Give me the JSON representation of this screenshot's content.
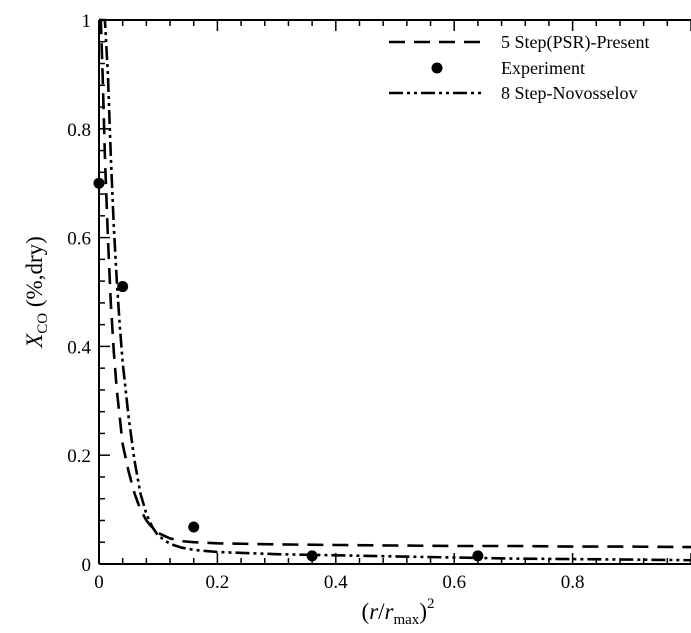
{
  "chart_data": {
    "type": "line",
    "title": "",
    "xlabel": "(r/r_max)^2",
    "ylabel": "X_CO (%,dry)",
    "xlim": [
      0,
      1.0
    ],
    "ylim": [
      0,
      1.0
    ],
    "xticks": [
      "0",
      "0.2",
      "0.4",
      "0.6",
      "0.8"
    ],
    "yticks": [
      "0",
      "0.2",
      "0.4",
      "0.6",
      "0.8",
      "1"
    ],
    "legend_placement": "top-right",
    "series": [
      {
        "name": "5 Step(PSR)-Present",
        "style": "dashed",
        "color": "#000000",
        "x": [
          0.0,
          0.003,
          0.006,
          0.01,
          0.015,
          0.02,
          0.025,
          0.03,
          0.035,
          0.04,
          0.05,
          0.06,
          0.07,
          0.08,
          0.09,
          0.1,
          0.12,
          0.14,
          0.16,
          0.2,
          0.3,
          0.4,
          0.5,
          0.6,
          0.7,
          0.8,
          0.9,
          1.0
        ],
        "y": [
          1.0,
          1.0,
          0.9,
          0.75,
          0.6,
          0.48,
          0.39,
          0.32,
          0.27,
          0.22,
          0.17,
          0.13,
          0.1,
          0.08,
          0.067,
          0.057,
          0.047,
          0.042,
          0.04,
          0.038,
          0.036,
          0.035,
          0.034,
          0.033,
          0.033,
          0.032,
          0.032,
          0.031
        ]
      },
      {
        "name": "Experiment",
        "style": "markers",
        "color": "#000000",
        "x": [
          0.0,
          0.04,
          0.16,
          0.36,
          0.64
        ],
        "y": [
          0.7,
          0.51,
          0.068,
          0.015,
          0.015
        ]
      },
      {
        "name": "8 Step-Novosselov",
        "style": "dash-dot-dot",
        "color": "#000000",
        "x": [
          0.0,
          0.005,
          0.01,
          0.015,
          0.02,
          0.025,
          0.03,
          0.035,
          0.04,
          0.05,
          0.06,
          0.07,
          0.08,
          0.09,
          0.1,
          0.12,
          0.14,
          0.16,
          0.2,
          0.3,
          0.4,
          0.5,
          0.6,
          0.7,
          0.8,
          0.9,
          1.0
        ],
        "y": [
          1.0,
          1.0,
          1.0,
          0.9,
          0.75,
          0.62,
          0.52,
          0.44,
          0.37,
          0.27,
          0.19,
          0.13,
          0.092,
          0.068,
          0.052,
          0.037,
          0.03,
          0.026,
          0.022,
          0.018,
          0.016,
          0.014,
          0.012,
          0.01,
          0.009,
          0.008,
          0.007
        ]
      }
    ]
  }
}
